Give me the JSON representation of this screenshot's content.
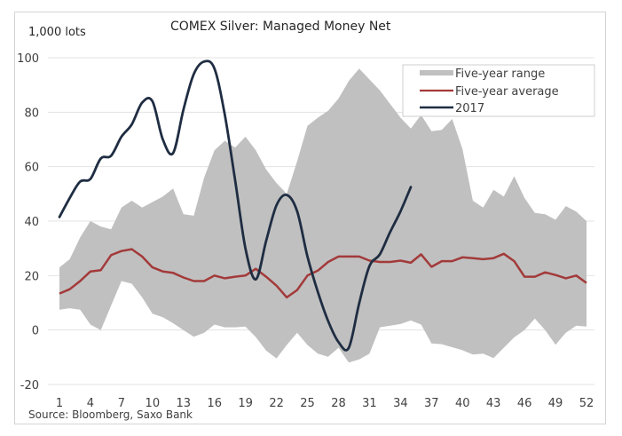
{
  "chart_data": {
    "type": "line",
    "title": "COMEX Silver:  Managed Money Net",
    "ylabel": "1,000 lots",
    "xlabel": "",
    "source": "Source: Bloomberg, Saxo Bank",
    "ylim": [
      -20,
      100
    ],
    "yticks": [
      -20,
      0,
      20,
      40,
      60,
      80,
      100
    ],
    "ytick_labels": [
      "-20",
      "0",
      "20",
      "40",
      "60",
      "80",
      "100"
    ],
    "xlim": [
      1,
      52
    ],
    "xticks": [
      1,
      4,
      7,
      10,
      13,
      16,
      19,
      22,
      25,
      28,
      31,
      34,
      37,
      40,
      43,
      46,
      49,
      52
    ],
    "xtick_labels": [
      "1",
      "4",
      "7",
      "10",
      "13",
      "16",
      "19",
      "22",
      "25",
      "28",
      "31",
      "34",
      "37",
      "40",
      "43",
      "46",
      "49",
      "52"
    ],
    "grid": true,
    "legend_position": "top-right",
    "legend": [
      "Five-year range",
      "Five-year average",
      "2017"
    ],
    "x": [
      1,
      2,
      3,
      4,
      5,
      6,
      7,
      8,
      9,
      10,
      11,
      12,
      13,
      14,
      15,
      16,
      17,
      18,
      19,
      20,
      21,
      22,
      23,
      24,
      25,
      26,
      27,
      28,
      29,
      30,
      31,
      32,
      33,
      34,
      35,
      36,
      37,
      38,
      39,
      40,
      41,
      42,
      43,
      44,
      45,
      46,
      47,
      48,
      49,
      50,
      51,
      52
    ],
    "series": [
      {
        "name": "Five-year range",
        "kind": "band",
        "color": "#c0c0c0",
        "upper": [
          23,
          26,
          34,
          40,
          38,
          37,
          45,
          47.5,
          45,
          47,
          49,
          52,
          42.5,
          42,
          56,
          66,
          69.5,
          67,
          71,
          66,
          59,
          54,
          50,
          62,
          75,
          78,
          80.5,
          85,
          91.5,
          96,
          92,
          88,
          83,
          78,
          74,
          79,
          73,
          73.5,
          77.5,
          66.5,
          47.5,
          45,
          51.5,
          49,
          56.5,
          48.5,
          43,
          42.5,
          40.5,
          45.5,
          43.5,
          40
        ],
        "lower": [
          7.5,
          8,
          7.5,
          2,
          0,
          9,
          18,
          17,
          12,
          6,
          4.7,
          2.5,
          0,
          -2.5,
          -1,
          2,
          1,
          1,
          1.3,
          -2.6,
          -7.5,
          -10.4,
          -5.5,
          -1,
          -5.5,
          -8.7,
          -9.8,
          -6.5,
          -11.9,
          -10.8,
          -8.7,
          1,
          1.6,
          2.2,
          3.5,
          2,
          -4.9,
          -5.2,
          -6.3,
          -7.4,
          -9,
          -8.7,
          -10.3,
          -6.5,
          -2.7,
          0,
          4.2,
          0,
          -5.4,
          -1,
          1.6,
          1.3
        ]
      },
      {
        "name": "Five-year average",
        "kind": "line",
        "color": "#a33a3a",
        "values": [
          13.4,
          15,
          18,
          21.5,
          22,
          27.5,
          29,
          29.7,
          27,
          23,
          21.5,
          21,
          19.3,
          18,
          18,
          20,
          19,
          19.6,
          20,
          22.5,
          19.6,
          16.3,
          12,
          14.7,
          20,
          21.8,
          25,
          27,
          27,
          27,
          25.5,
          25,
          25,
          25.5,
          24.7,
          27.8,
          23.2,
          25.3,
          25.3,
          26.7,
          26.4,
          26,
          26.4,
          28,
          25.3,
          19.6,
          19.6,
          21.2,
          20.2,
          19,
          20,
          17.3
        ]
      },
      {
        "name": "2017",
        "kind": "line",
        "smooth": true,
        "color": "#1f2d42",
        "values": [
          41.5,
          48.5,
          54.5,
          55.5,
          63,
          64,
          71,
          75.5,
          83.5,
          84,
          70,
          65,
          81,
          94,
          98.6,
          96,
          79,
          55,
          30,
          18.6,
          32.7,
          45.8,
          49.6,
          43.6,
          27,
          14,
          3.3,
          -4.4,
          -6.5,
          9.8,
          23.5,
          27.8,
          36,
          43.6,
          52.5,
          null,
          null,
          null,
          null,
          null,
          null,
          null,
          null,
          null,
          null,
          null,
          null,
          null,
          null,
          null,
          null,
          null
        ]
      }
    ]
  }
}
